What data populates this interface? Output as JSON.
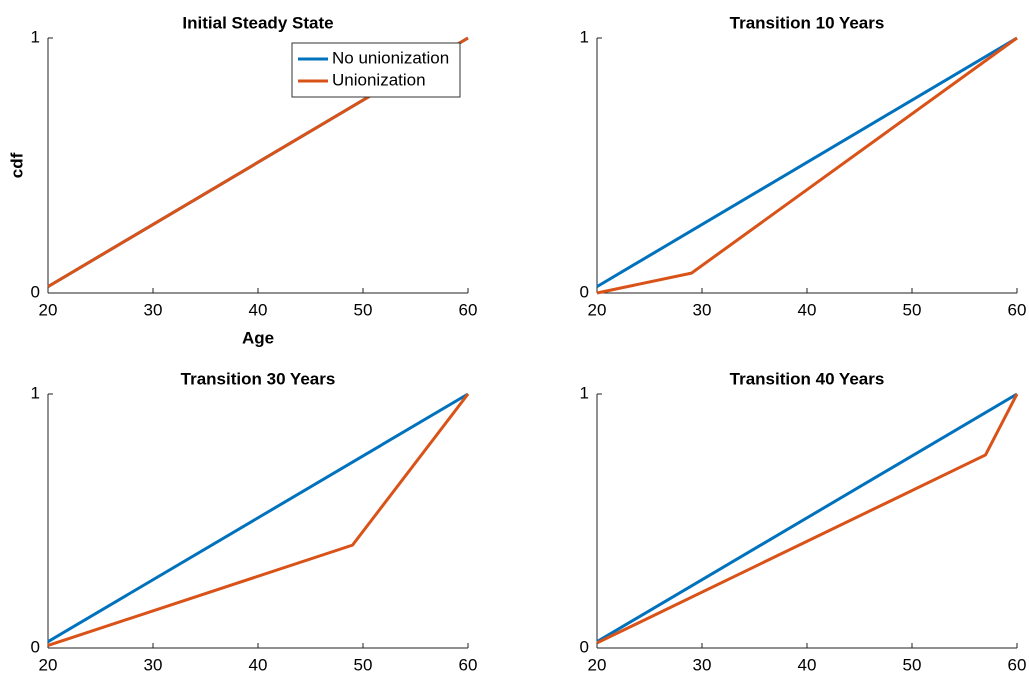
{
  "chart_data": [
    {
      "type": "line",
      "title": "Initial Steady State",
      "xlabel": "Age",
      "ylabel": "cdf",
      "legend": "northeast",
      "xlim": [
        20,
        60
      ],
      "ylim": [
        0,
        1
      ],
      "xticks": [
        20,
        30,
        40,
        50,
        60
      ],
      "yticks": [
        0,
        1
      ],
      "series": [
        {
          "name": "No unionization",
          "color": "#0072BD",
          "x": [
            20,
            60
          ],
          "values": [
            0.025,
            1
          ]
        },
        {
          "name": "Unionization",
          "color": "#D95319",
          "x": [
            20,
            60
          ],
          "values": [
            0.025,
            1
          ]
        }
      ]
    },
    {
      "type": "line",
      "title": "Transition 10 Years",
      "xlim": [
        20,
        60
      ],
      "ylim": [
        0,
        1
      ],
      "xticks": [
        20,
        30,
        40,
        50,
        60
      ],
      "yticks": [
        0,
        1
      ],
      "series": [
        {
          "color": "#0072BD",
          "x": [
            20,
            60
          ],
          "values": [
            0.025,
            1
          ]
        },
        {
          "color": "#D95319",
          "x": [
            20,
            29,
            60
          ],
          "values": [
            0.0,
            0.078,
            1
          ]
        }
      ]
    },
    {
      "type": "line",
      "title": "Transition 30 Years",
      "xlim": [
        20,
        60
      ],
      "ylim": [
        0,
        1
      ],
      "xticks": [
        20,
        30,
        40,
        50,
        60
      ],
      "yticks": [
        0,
        1
      ],
      "series": [
        {
          "color": "#0072BD",
          "x": [
            20,
            60
          ],
          "values": [
            0.025,
            1
          ]
        },
        {
          "color": "#D95319",
          "x": [
            20,
            49,
            60
          ],
          "values": [
            0.01,
            0.405,
            1
          ]
        }
      ]
    },
    {
      "type": "line",
      "title": "Transition 40 Years",
      "xlim": [
        20,
        60
      ],
      "ylim": [
        0,
        1
      ],
      "xticks": [
        20,
        30,
        40,
        50,
        60
      ],
      "yticks": [
        0,
        1
      ],
      "series": [
        {
          "color": "#0072BD",
          "x": [
            20,
            60
          ],
          "values": [
            0.025,
            1
          ]
        },
        {
          "color": "#D95319",
          "x": [
            20,
            57,
            60
          ],
          "values": [
            0.02,
            0.76,
            1
          ]
        }
      ]
    }
  ]
}
